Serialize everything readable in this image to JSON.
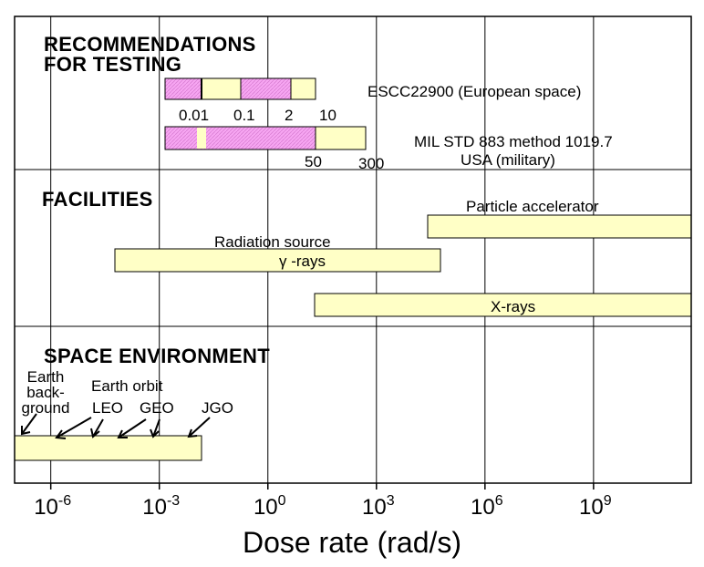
{
  "axis": {
    "title": "Dose rate (rad/s)",
    "scale": "log",
    "range_log10": [
      -7.0,
      11.7
    ],
    "tick_labels": [
      {
        "mantissa": "10",
        "exponent": "-6",
        "value": 1e-06
      },
      {
        "mantissa": "10",
        "exponent": "-3",
        "value": 0.001
      },
      {
        "mantissa": "10",
        "exponent": "0",
        "value": 1
      },
      {
        "mantissa": "10",
        "exponent": "3",
        "value": 1000.0
      },
      {
        "mantissa": "10",
        "exponent": "6",
        "value": 1000000.0
      },
      {
        "mantissa": "10",
        "exponent": "9",
        "value": 1000000000.0
      }
    ],
    "grid": true
  },
  "colors": {
    "pink": "#f7a6f2",
    "cream": "#ffffc6",
    "line": "#000000"
  },
  "sections": {
    "testing": {
      "title_line1": "RECOMMENDATIONS",
      "title_line2": "FOR TESTING",
      "escc": {
        "label": "ESCC22900 (European space)",
        "values": [
          "0.01",
          "0.1",
          "2",
          "10"
        ]
      },
      "milstd": {
        "label_line1": "MIL STD 883 method 1019.7",
        "label_line2": "USA (military)",
        "values": [
          "50",
          "300"
        ]
      }
    },
    "facilities": {
      "title": "FACILITIES",
      "particle_accelerator": "Particle accelerator",
      "radiation_source": "Radiation source",
      "gamma_rays": "γ -rays",
      "x_rays": "X-rays"
    },
    "space": {
      "title": "SPACE ENVIRONMENT",
      "earth_background": [
        "Earth",
        "back-",
        "ground"
      ],
      "earth_orbit": "Earth orbit",
      "leo": "LEO",
      "geo": "GEO",
      "jgo": "JGO"
    }
  }
}
